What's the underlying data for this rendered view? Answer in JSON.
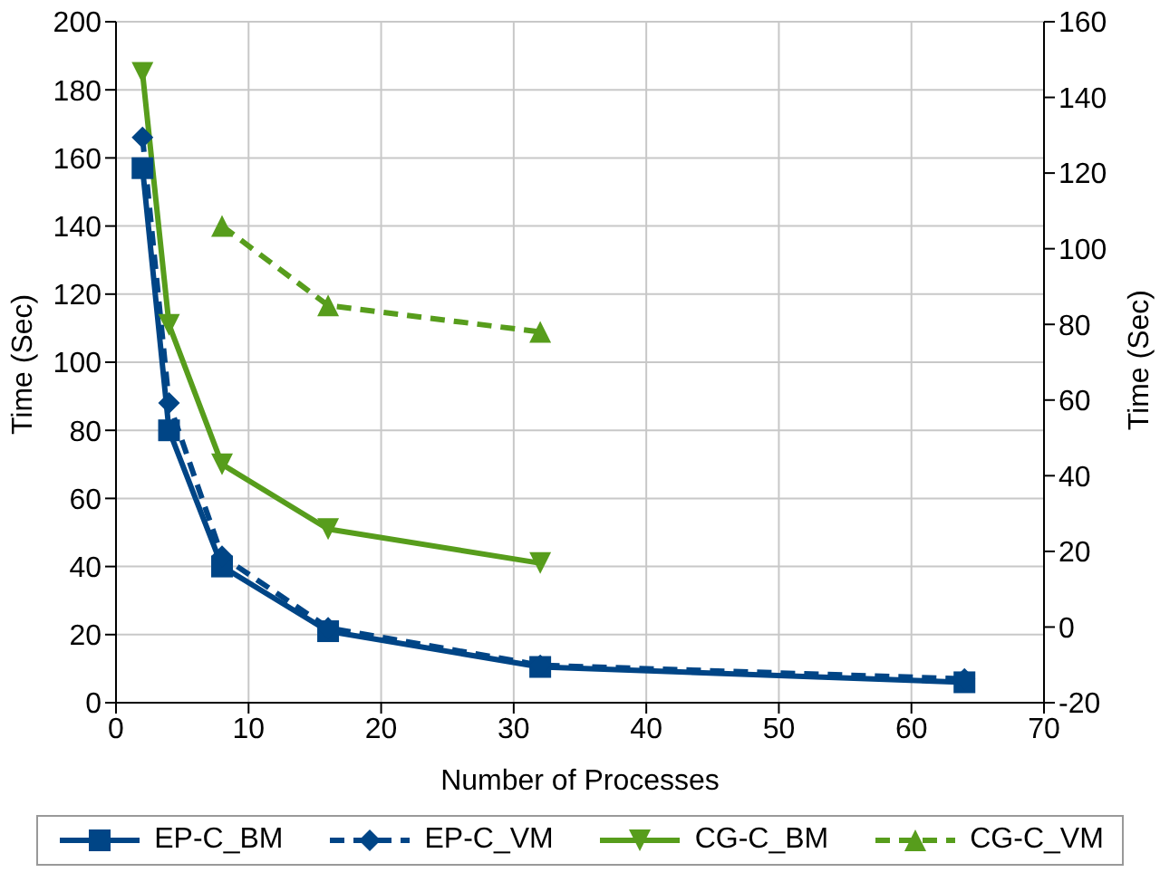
{
  "chart_data": {
    "type": "line",
    "xlabel": "Number of Processes",
    "ylabel": "Time (Sec)",
    "y2label": "Time (Sec)",
    "xlim": [
      0,
      70
    ],
    "xticks": [
      0,
      10,
      20,
      30,
      40,
      50,
      60,
      70
    ],
    "ylim": [
      0,
      200
    ],
    "yticks": [
      0,
      20,
      40,
      60,
      80,
      100,
      120,
      140,
      160,
      180,
      200
    ],
    "y2lim": [
      -20,
      160
    ],
    "y2ticks": [
      -20,
      0,
      20,
      40,
      60,
      80,
      100,
      120,
      140,
      160
    ],
    "grid": true,
    "legend": "bottom",
    "series": [
      {
        "name": "EP-C_BM",
        "color": "#004586",
        "x": [
          2,
          4,
          8,
          16,
          32,
          64
        ],
        "values": [
          157,
          80,
          40,
          21,
          10.5,
          6
        ],
        "marker": "square",
        "line_style": "solid"
      },
      {
        "name": "EP-C_VM",
        "color": "#004586",
        "x": [
          2,
          4,
          8,
          16,
          32,
          64
        ],
        "values": [
          166,
          88,
          43,
          22,
          11,
          7
        ],
        "marker": "diamond",
        "line_style": "dashed"
      },
      {
        "name": "CG-C_BM",
        "color": "#579d1c",
        "x": [
          2,
          4,
          8,
          16,
          32
        ],
        "values": [
          185,
          111,
          70,
          51,
          41
        ],
        "marker": "triangle-down",
        "line_style": "solid"
      },
      {
        "name": "CG-C_VM",
        "color": "#579d1c",
        "x": [
          8,
          16,
          32
        ],
        "values": [
          106,
          85,
          78
        ],
        "marker": "triangle",
        "line_style": "dashed",
        "axis": "y2"
      }
    ]
  }
}
